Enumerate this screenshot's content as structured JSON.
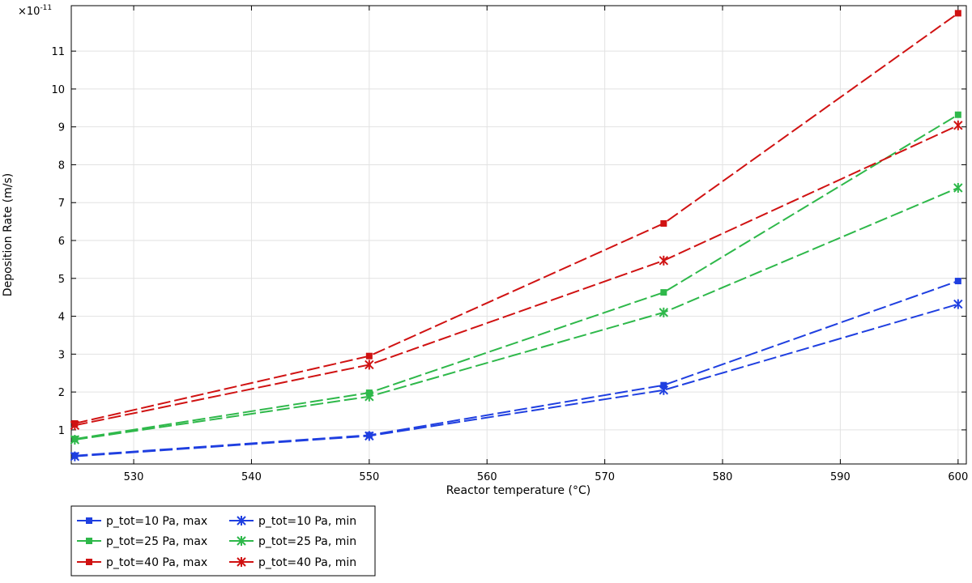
{
  "chart_data": {
    "type": "line",
    "title": "",
    "xlabel": "Reactor temperature (°C)",
    "ylabel": "Deposition Rate (m/s)",
    "y_scale_exponent_label": "×10",
    "y_scale_exponent_power": "-11",
    "xlim": [
      524.7,
      600.7
    ],
    "ylim": [
      0.1,
      12.2
    ],
    "x_ticks": [
      530,
      540,
      550,
      560,
      570,
      580,
      590,
      600
    ],
    "y_ticks": [
      1,
      2,
      3,
      4,
      5,
      6,
      7,
      8,
      9,
      10,
      11
    ],
    "grid": true,
    "legend_position": "bottom-left, outside plot",
    "x": [
      525,
      550,
      575,
      600
    ],
    "series": [
      {
        "name": "p_tot=10 Pa, max",
        "color": "#1f3fe0",
        "marker": "square",
        "values": [
          0.32,
          0.86,
          2.18,
          4.93
        ]
      },
      {
        "name": "p_tot=10 Pa, min",
        "color": "#1f3fe0",
        "marker": "x",
        "values": [
          0.3,
          0.84,
          2.05,
          4.32
        ]
      },
      {
        "name": "p_tot=25 Pa, max",
        "color": "#2eb84a",
        "marker": "square",
        "values": [
          0.76,
          1.98,
          4.63,
          9.32
        ]
      },
      {
        "name": "p_tot=25 Pa, min",
        "color": "#2eb84a",
        "marker": "x",
        "values": [
          0.74,
          1.88,
          4.1,
          7.39
        ]
      },
      {
        "name": "p_tot=40 Pa, max",
        "color": "#d01212",
        "marker": "square",
        "values": [
          1.17,
          2.95,
          6.45,
          12.0
        ]
      },
      {
        "name": "p_tot=40 Pa, min",
        "color": "#d01212",
        "marker": "x",
        "values": [
          1.12,
          2.72,
          5.47,
          9.04
        ]
      }
    ]
  }
}
